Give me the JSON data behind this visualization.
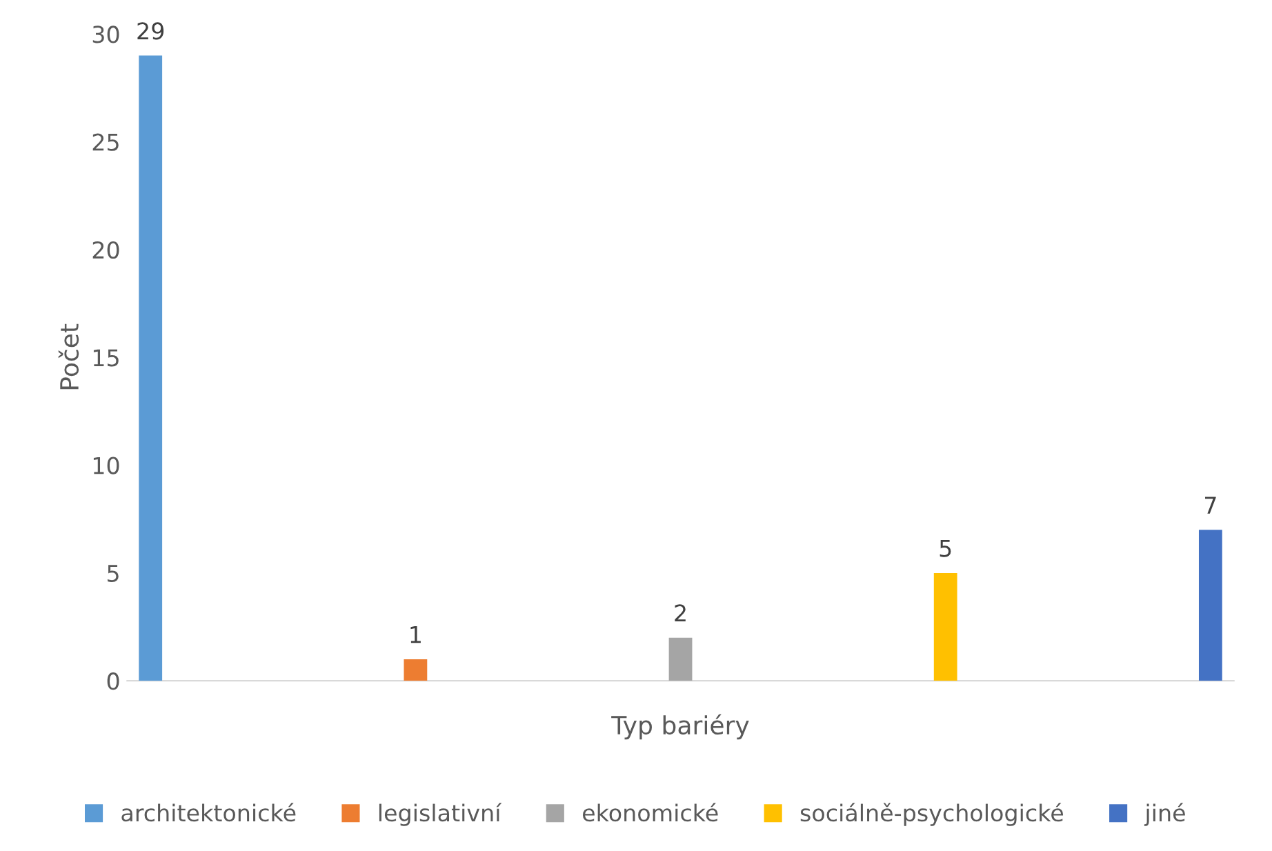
{
  "chart_data": {
    "type": "bar",
    "xlabel": "Typ bariéry",
    "ylabel": "Počet",
    "categories": [
      null
    ],
    "series": [
      {
        "name": "architektonické",
        "color": "#5b9bd5",
        "values": [
          29
        ]
      },
      {
        "name": "legislativní",
        "color": "#ed7d31",
        "values": [
          1
        ]
      },
      {
        "name": "ekonomické",
        "color": "#a5a5a5",
        "values": [
          2
        ]
      },
      {
        "name": "sociálně-psychologické",
        "color": "#ffc000",
        "values": [
          5
        ]
      },
      {
        "name": "jiné",
        "color": "#4472c4",
        "values": [
          7
        ]
      }
    ],
    "ylim": [
      0,
      30
    ],
    "yticks": [
      0,
      5,
      10,
      15,
      20,
      25,
      30
    ],
    "grid": false,
    "legend": "bottom",
    "data_labels": true
  }
}
